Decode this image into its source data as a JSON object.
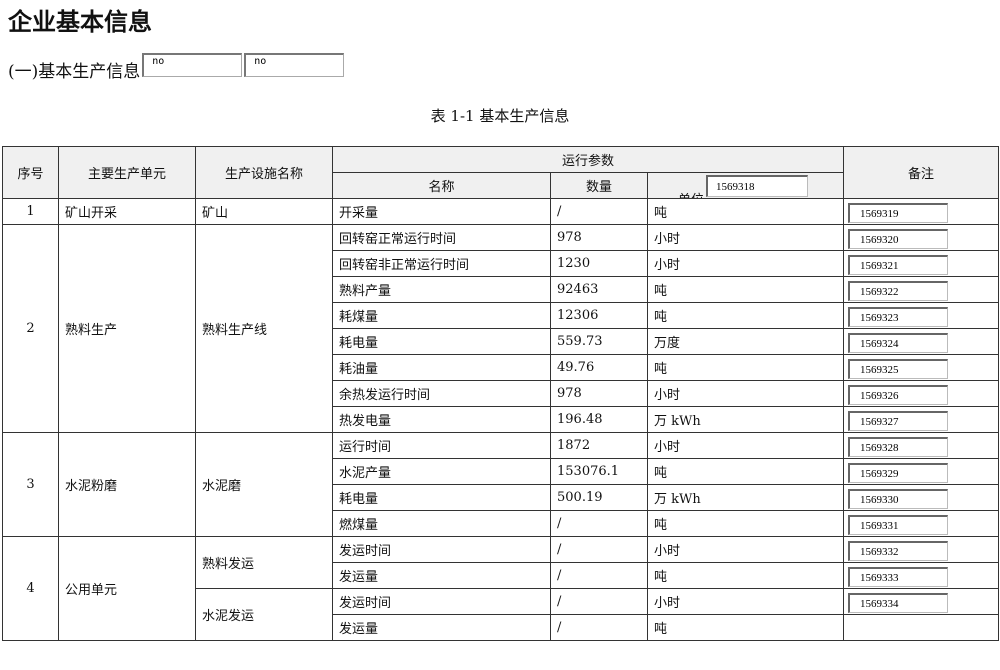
{
  "title": "企业基本信息",
  "section": {
    "label": "(一)基本生产信息",
    "input1": "no",
    "input2": "no"
  },
  "caption": "表 1-1 基本生产信息",
  "headers": {
    "seq": "序号",
    "unit_main": "主要生产单元",
    "facility": "生产设施名称",
    "params": "运行参数",
    "name": "名称",
    "qty": "数量",
    "unit": "单位",
    "unit_input": "1569318",
    "note": "备注"
  },
  "groups": [
    {
      "seq": "1",
      "main": "矿山开采",
      "facilities": [
        {
          "name": "矿山",
          "rows": [
            {
              "name": "开采量",
              "qty": "/",
              "unit": "吨",
              "note": "1569319"
            }
          ]
        }
      ]
    },
    {
      "seq": "2",
      "main": "熟料生产",
      "facilities": [
        {
          "name": "熟料生产线",
          "rows": [
            {
              "name": "回转窑正常运行时间",
              "qty": "978",
              "unit": "小时",
              "note": "1569320"
            },
            {
              "name": "回转窑非正常运行时间",
              "qty": "1230",
              "unit": "小时",
              "note": "1569321"
            },
            {
              "name": "熟料产量",
              "qty": "92463",
              "unit": "吨",
              "note": "1569322"
            },
            {
              "name": "耗煤量",
              "qty": "12306",
              "unit": "吨",
              "note": "1569323"
            },
            {
              "name": "耗电量",
              "qty": "559.73",
              "unit": "万度",
              "note": "1569324"
            },
            {
              "name": "耗油量",
              "qty": "49.76",
              "unit": "吨",
              "note": "1569325"
            },
            {
              "name": "余热发运行时间",
              "qty": "978",
              "unit": "小时",
              "note": "1569326"
            },
            {
              "name": "热发电量",
              "qty": "196.48",
              "unit": "万 kWh",
              "note": "1569327"
            }
          ]
        }
      ]
    },
    {
      "seq": "3",
      "main": "水泥粉磨",
      "facilities": [
        {
          "name": "水泥磨",
          "rows": [
            {
              "name": "运行时间",
              "qty": "1872",
              "unit": "小时",
              "note": "1569328"
            },
            {
              "name": "水泥产量",
              "qty": "153076.1",
              "unit": "吨",
              "note": "1569329"
            },
            {
              "name": "耗电量",
              "qty": "500.19",
              "unit": "万 kWh",
              "note": "1569330"
            },
            {
              "name": "燃煤量",
              "qty": "/",
              "unit": "吨",
              "note": "1569331"
            }
          ]
        }
      ]
    },
    {
      "seq": "4",
      "main": "公用单元",
      "facilities": [
        {
          "name": "熟料发运",
          "rows": [
            {
              "name": "发运时间",
              "qty": "/",
              "unit": "小时",
              "note": "1569332"
            },
            {
              "name": "发运量",
              "qty": "/",
              "unit": "吨",
              "note": "1569333"
            }
          ]
        },
        {
          "name": "水泥发运",
          "rows": [
            {
              "name": "发运时间",
              "qty": "/",
              "unit": "小时",
              "note": "1569334"
            },
            {
              "name": "发运量",
              "qty": "/",
              "unit": "吨",
              "note": null
            }
          ]
        }
      ]
    }
  ]
}
